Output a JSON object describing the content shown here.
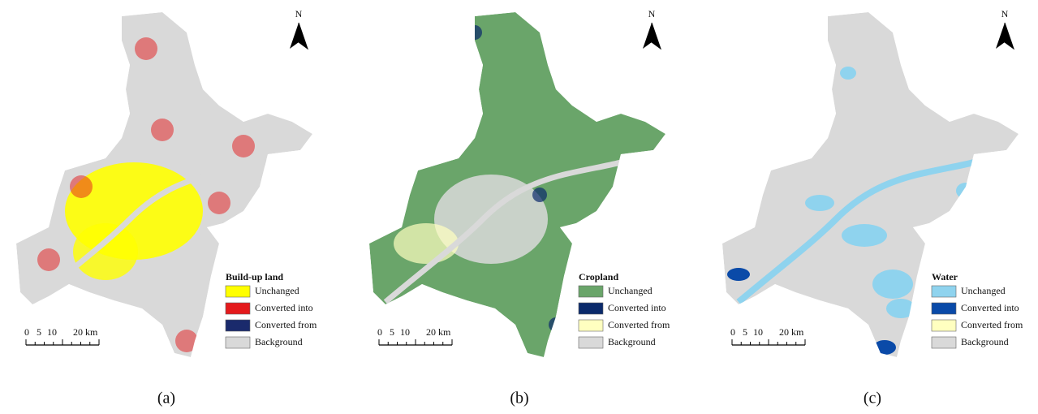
{
  "panels": [
    {
      "label": "(a)",
      "north": "N",
      "scale": [
        "0",
        "5",
        "10",
        "20 km"
      ],
      "legend": {
        "title": "Build-up land",
        "items": [
          {
            "label": "Unchanged",
            "color": "#ffff00"
          },
          {
            "label": "Converted into",
            "color": "#e41a1c"
          },
          {
            "label": "Converted from",
            "color": "#1a2a6c"
          },
          {
            "label": "Background",
            "color": "#d9d9d9"
          }
        ]
      }
    },
    {
      "label": "(b)",
      "north": "N",
      "scale": [
        "0",
        "5",
        "10",
        "20 km"
      ],
      "legend": {
        "title": "Cropland",
        "items": [
          {
            "label": "Unchanged",
            "color": "#6aa56a"
          },
          {
            "label": "Converted into",
            "color": "#0b2a6b"
          },
          {
            "label": "Converted from",
            "color": "#ffffc0"
          },
          {
            "label": "Background",
            "color": "#d9d9d9"
          }
        ]
      }
    },
    {
      "label": "(c)",
      "north": "N",
      "scale": [
        "0",
        "5",
        "10",
        "20 km"
      ],
      "legend": {
        "title": "Water",
        "items": [
          {
            "label": "Unchanged",
            "color": "#8fd3ee"
          },
          {
            "label": "Converted into",
            "color": "#0a4aa8"
          },
          {
            "label": "Converted from",
            "color": "#ffffc0"
          },
          {
            "label": "Background",
            "color": "#d9d9d9"
          }
        ]
      }
    }
  ]
}
